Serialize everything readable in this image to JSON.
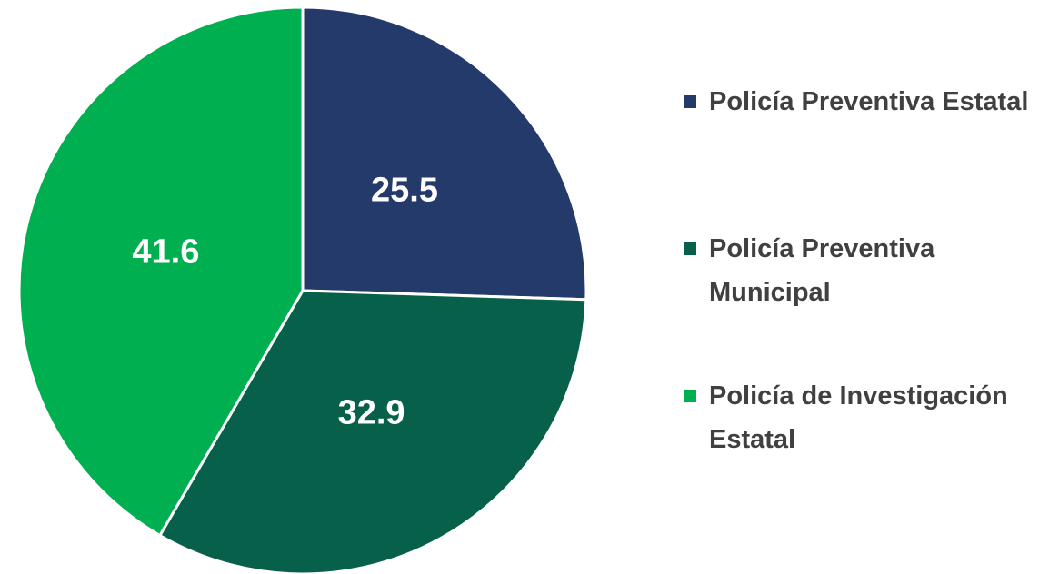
{
  "chart_data": {
    "type": "pie",
    "categories": [
      "Policía Preventiva Estatal",
      "Policía Preventiva Municipal",
      "Policía de Investigación Estatal"
    ],
    "values": [
      25.5,
      32.9,
      41.6
    ],
    "colors": [
      "#243a6b",
      "#07604a",
      "#00b050"
    ],
    "legend": "right"
  }
}
